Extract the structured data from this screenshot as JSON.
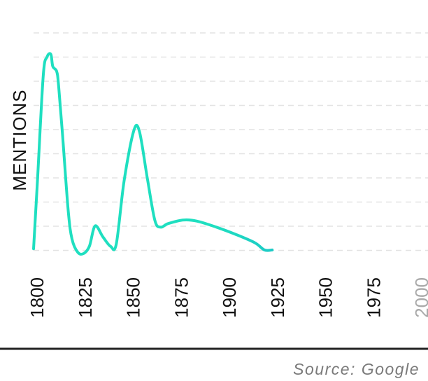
{
  "chart_data": {
    "type": "line",
    "title": "",
    "xlabel": "",
    "ylabel": "MENTIONS",
    "x_ticks": [
      {
        "label": "1800",
        "value": 1800,
        "color": "#111111"
      },
      {
        "label": "1825",
        "value": 1825,
        "color": "#111111"
      },
      {
        "label": "1850",
        "value": 1850,
        "color": "#111111"
      },
      {
        "label": "1875",
        "value": 1875,
        "color": "#111111"
      },
      {
        "label": "1900",
        "value": 1900,
        "color": "#111111"
      },
      {
        "label": "1925",
        "value": 1925,
        "color": "#111111"
      },
      {
        "label": "1950",
        "value": 1950,
        "color": "#111111"
      },
      {
        "label": "1975",
        "value": 1975,
        "color": "#111111"
      },
      {
        "label": "2000",
        "value": 2000,
        "color": "#a9a9a9"
      }
    ],
    "xlim": [
      1800,
      2005
    ],
    "ylim": [
      0,
      9.2
    ],
    "y_ticks_shown": false,
    "grid": "horizontal dashed",
    "series": [
      {
        "values": [
          [
            1800,
            0.2
          ],
          [
            1802,
            3.0
          ],
          [
            1805,
            7.4
          ],
          [
            1807,
            8.2
          ],
          [
            1809,
            8.3
          ],
          [
            1810,
            7.8
          ],
          [
            1812,
            7.6
          ],
          [
            1813,
            7.0
          ],
          [
            1815,
            5.0
          ],
          [
            1818,
            1.8
          ],
          [
            1820,
            0.6
          ],
          [
            1823,
            0.05
          ],
          [
            1826,
            0.0
          ],
          [
            1829,
            0.3
          ],
          [
            1832,
            1.15
          ],
          [
            1836,
            0.7
          ],
          [
            1840,
            0.3
          ],
          [
            1843,
            0.4
          ],
          [
            1847,
            3.0
          ],
          [
            1852,
            5.1
          ],
          [
            1855,
            5.1
          ],
          [
            1859,
            3.2
          ],
          [
            1863,
            1.4
          ],
          [
            1866,
            1.1
          ],
          [
            1870,
            1.25
          ],
          [
            1878,
            1.4
          ],
          [
            1885,
            1.35
          ],
          [
            1895,
            1.1
          ],
          [
            1905,
            0.8
          ],
          [
            1915,
            0.45
          ],
          [
            1920,
            0.15
          ],
          [
            1924,
            0.15
          ]
        ],
        "color_start": "#1fdfc0",
        "color_end": "#16a8cf"
      }
    ]
  },
  "footer": {
    "source": "Source: Google"
  }
}
